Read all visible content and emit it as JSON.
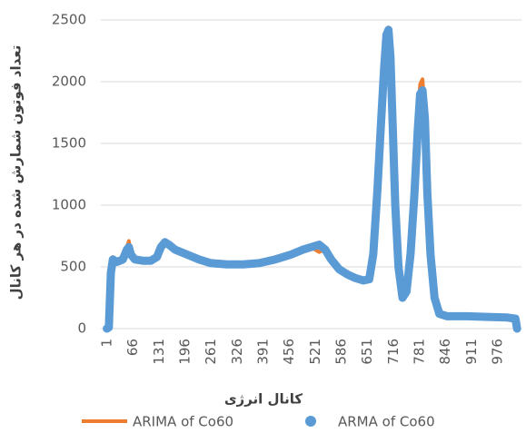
{
  "chart_data": {
    "type": "line",
    "x_label": "کانال انرژی",
    "y_label": "تعداد فوتون شمارش شده در هر کانال",
    "x": [
      0,
      5,
      10,
      15,
      25,
      40,
      50,
      55,
      60,
      70,
      90,
      110,
      125,
      135,
      145,
      155,
      170,
      200,
      230,
      260,
      300,
      340,
      380,
      420,
      460,
      490,
      510,
      530,
      545,
      560,
      580,
      600,
      620,
      640,
      655,
      665,
      675,
      685,
      692,
      698,
      703,
      708,
      713,
      720,
      728,
      738,
      748,
      758,
      768,
      776,
      782,
      788,
      794,
      800,
      808,
      818,
      830,
      850,
      900,
      950,
      1000,
      1020,
      1024
    ],
    "series": [
      {
        "name": "ARIMA of Co60",
        "color": "#ed7d31",
        "values": [
          0,
          10,
          450,
          580,
          540,
          560,
          660,
          710,
          610,
          560,
          550,
          550,
          580,
          660,
          700,
          680,
          640,
          600,
          560,
          530,
          520,
          520,
          530,
          560,
          600,
          640,
          660,
          620,
          640,
          560,
          480,
          440,
          410,
          390,
          400,
          620,
          1150,
          1780,
          2150,
          2400,
          2440,
          2200,
          1700,
          1000,
          500,
          250,
          300,
          600,
          1150,
          1700,
          1980,
          2020,
          1750,
          1100,
          600,
          250,
          120,
          100,
          100,
          95,
          90,
          80,
          0
        ]
      },
      {
        "name": "ARMA of Co60",
        "color": "#5b9bd5",
        "values": [
          0,
          10,
          450,
          560,
          540,
          560,
          640,
          660,
          600,
          560,
          550,
          550,
          580,
          660,
          700,
          680,
          640,
          600,
          560,
          530,
          520,
          520,
          530,
          560,
          600,
          640,
          660,
          680,
          640,
          560,
          480,
          440,
          410,
          390,
          400,
          600,
          1100,
          1700,
          2100,
          2380,
          2420,
          2200,
          1700,
          1000,
          500,
          250,
          300,
          600,
          1100,
          1600,
          1900,
          1930,
          1700,
          1100,
          600,
          250,
          120,
          100,
          100,
          95,
          90,
          80,
          0
        ]
      }
    ],
    "xlim": [
      -15,
      1035
    ],
    "xticks": [
      1,
      66,
      131,
      196,
      261,
      326,
      391,
      456,
      521,
      586,
      651,
      716,
      781,
      846,
      911,
      976
    ],
    "ylim": [
      0,
      2500
    ],
    "yticks": [
      0,
      500,
      1000,
      1500,
      2000,
      2500
    ],
    "grid": true,
    "legend": "bottom"
  }
}
